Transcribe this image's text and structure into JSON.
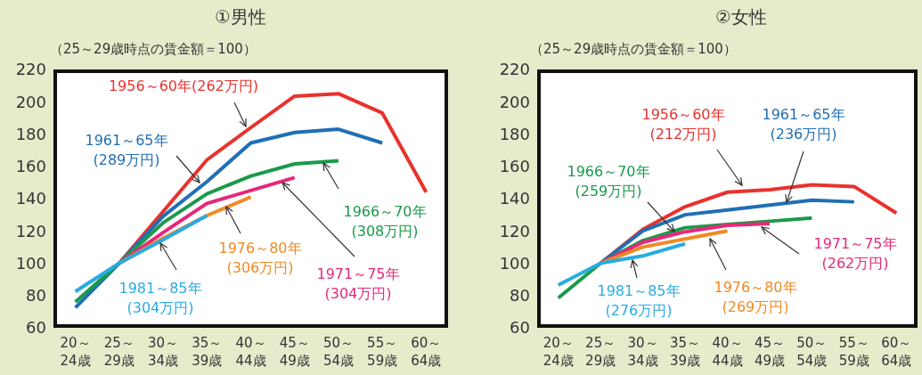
{
  "chart_data": [
    {
      "type": "line",
      "title": "①男性",
      "subtitle": "（25～29歳時点の賃金額＝100）",
      "categories": [
        "20～\n24歳",
        "25～\n29歳",
        "30～\n34歳",
        "35～\n39歳",
        "40～\n44歳",
        "45～\n49歳",
        "50～\n54歳",
        "55～\n59歳",
        "60～\n64歳"
      ],
      "ylim": [
        60,
        220
      ],
      "yticks": [
        60,
        80,
        100,
        120,
        140,
        160,
        180,
        200,
        220
      ],
      "marker": "none",
      "line_style": "solid",
      "series": [
        {
          "name": "1956～60年(262万円)",
          "color": "#e8322d",
          "values": [
            null,
            100,
            132,
            164,
            184,
            203.5,
            205,
            193,
            144
          ]
        },
        {
          "name": "1961～65年\n(289万円)",
          "color": "#1f6fb5",
          "values": [
            72.5,
            100,
            129,
            150.5,
            174.5,
            181,
            183,
            174.5,
            null
          ]
        },
        {
          "name": "1966～70年\n(308万円)",
          "color": "#1a9a4a",
          "values": [
            76,
            100,
            125,
            143,
            154,
            161.5,
            163.5,
            null,
            null
          ]
        },
        {
          "name": "1971～75年\n(304万円)",
          "color": "#e6287a",
          "values": [
            null,
            100,
            119,
            137,
            145,
            153,
            null,
            null,
            null
          ]
        },
        {
          "name": "1976～80年\n(306万円)",
          "color": "#f08a24",
          "values": [
            null,
            100,
            115.5,
            129.5,
            141,
            null,
            null,
            null,
            null
          ]
        },
        {
          "name": "1981～85年\n(304万円)",
          "color": "#29abe2",
          "values": [
            82.5,
            100,
            114.5,
            129.5,
            null,
            null,
            null,
            null,
            null
          ]
        }
      ]
    },
    {
      "type": "line",
      "title": "②女性",
      "subtitle": "（25～29歳時点の賃金額＝100）",
      "categories": [
        "20～\n24歳",
        "25～\n29歳",
        "30～\n34歳",
        "35～\n39歳",
        "40～\n44歳",
        "45～\n49歳",
        "50～\n54歳",
        "55～\n59歳",
        "60～\n64歳"
      ],
      "ylim": [
        60,
        220
      ],
      "yticks": [
        60,
        80,
        100,
        120,
        140,
        160,
        180,
        200,
        220
      ],
      "marker": "none",
      "line_style": "solid",
      "series": [
        {
          "name": "1956～60年\n(212万円)",
          "color": "#e8322d",
          "values": [
            null,
            100,
            121,
            135,
            144,
            145.5,
            148.5,
            147.5,
            131
          ]
        },
        {
          "name": "1961～65年\n(236万円)",
          "color": "#1f6fb5",
          "values": [
            null,
            100,
            120,
            130,
            133,
            136,
            139,
            138,
            null
          ]
        },
        {
          "name": "1966～70年\n(259万円)",
          "color": "#1a9a4a",
          "values": [
            78.5,
            100,
            114,
            122,
            124,
            126,
            128,
            null,
            null
          ]
        },
        {
          "name": "1971～75年\n(262万円)",
          "color": "#e6287a",
          "values": [
            null,
            100,
            113,
            119.5,
            123.5,
            124.5,
            null,
            null,
            null
          ]
        },
        {
          "name": "1976～80年\n(269万円)",
          "color": "#f08a24",
          "values": [
            null,
            100,
            110,
            115,
            120,
            null,
            null,
            null,
            null
          ]
        },
        {
          "name": "1981～85年\n(276万円)",
          "color": "#29abe2",
          "values": [
            86.5,
            100,
            104.5,
            112,
            null,
            null,
            null,
            null,
            null
          ]
        }
      ]
    }
  ]
}
